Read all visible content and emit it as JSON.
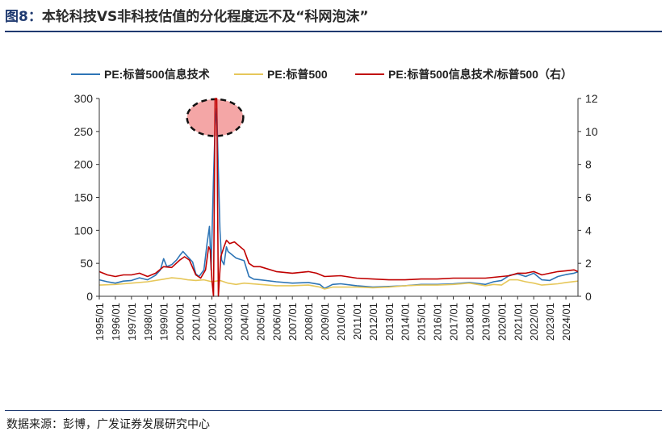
{
  "figure": {
    "number": "图8：",
    "title": "本轮科技VS非科技估值的分化程度远不及“科网泡沫”"
  },
  "source": "数据来源：彭博，广发证券发展研究中心",
  "chart_data": {
    "type": "line",
    "legend_position": "top",
    "grid": false,
    "x_tick_labels": [
      "1995/01",
      "1996/01",
      "1997/01",
      "1998/01",
      "1999/01",
      "2000/01",
      "2001/01",
      "2002/01",
      "2003/01",
      "2004/01",
      "2005/01",
      "2006/01",
      "2007/01",
      "2008/01",
      "2009/01",
      "2010/01",
      "2011/01",
      "2012/01",
      "2013/01",
      "2014/01",
      "2015/01",
      "2016/01",
      "2017/01",
      "2018/01",
      "2019/01",
      "2020/01",
      "2021/01",
      "2022/01",
      "2023/01",
      "2024/01"
    ],
    "x_range": [
      1995.0,
      2024.75
    ],
    "y_left": {
      "range": [
        0,
        300
      ],
      "ticks": [
        0,
        50,
        100,
        150,
        200,
        250,
        300
      ]
    },
    "y_right": {
      "range": [
        0,
        12
      ],
      "ticks": [
        0,
        2,
        4,
        6,
        8,
        10,
        12
      ]
    },
    "highlight": {
      "type": "dashed-ellipse",
      "center_x": 2002.2,
      "center_y_left": 271,
      "rx_years": 1.75,
      "ry_left": 28,
      "fill": "#f4a6a6"
    },
    "series": [
      {
        "name": "PE:标普500信息技术",
        "axis": "left",
        "color": "#2e75b6",
        "points": [
          [
            1995.0,
            25
          ],
          [
            1995.5,
            22
          ],
          [
            1996.0,
            20
          ],
          [
            1996.5,
            23
          ],
          [
            1997.0,
            24
          ],
          [
            1997.5,
            28
          ],
          [
            1998.0,
            25
          ],
          [
            1998.5,
            32
          ],
          [
            1998.8,
            40
          ],
          [
            1999.0,
            57
          ],
          [
            1999.2,
            45
          ],
          [
            1999.5,
            48
          ],
          [
            1999.8,
            55
          ],
          [
            2000.0,
            62
          ],
          [
            2000.2,
            68
          ],
          [
            2000.5,
            60
          ],
          [
            2000.8,
            52
          ],
          [
            2001.0,
            34
          ],
          [
            2001.2,
            30
          ],
          [
            2001.5,
            40
          ],
          [
            2001.7,
            80
          ],
          [
            2001.85,
            106
          ],
          [
            2001.95,
            40
          ],
          [
            2002.1,
            180
          ],
          [
            2002.2,
            258
          ],
          [
            2002.3,
            285
          ],
          [
            2002.4,
            190
          ],
          [
            2002.5,
            100
          ],
          [
            2002.6,
            55
          ],
          [
            2002.75,
            48
          ],
          [
            2002.9,
            75
          ],
          [
            2003.0,
            68
          ],
          [
            2003.5,
            58
          ],
          [
            2004.0,
            54
          ],
          [
            2004.3,
            30
          ],
          [
            2004.6,
            26
          ],
          [
            2005.0,
            25
          ],
          [
            2006.0,
            22
          ],
          [
            2007.0,
            20
          ],
          [
            2008.0,
            21
          ],
          [
            2008.7,
            18
          ],
          [
            2009.0,
            12
          ],
          [
            2009.5,
            18
          ],
          [
            2010.0,
            19
          ],
          [
            2011.0,
            16
          ],
          [
            2012.0,
            14
          ],
          [
            2013.0,
            15
          ],
          [
            2014.0,
            16
          ],
          [
            2015.0,
            18
          ],
          [
            2016.0,
            18
          ],
          [
            2017.0,
            19
          ],
          [
            2018.0,
            21
          ],
          [
            2019.0,
            18
          ],
          [
            2019.5,
            22
          ],
          [
            2020.0,
            24
          ],
          [
            2020.5,
            32
          ],
          [
            2021.0,
            34
          ],
          [
            2021.5,
            30
          ],
          [
            2022.0,
            35
          ],
          [
            2022.5,
            25
          ],
          [
            2023.0,
            24
          ],
          [
            2023.5,
            30
          ],
          [
            2024.0,
            33
          ],
          [
            2024.5,
            35
          ],
          [
            2024.75,
            37
          ]
        ]
      },
      {
        "name": "PE:标普500",
        "axis": "left",
        "color": "#e6c75a",
        "points": [
          [
            1995.0,
            17
          ],
          [
            1996.0,
            18
          ],
          [
            1997.0,
            20
          ],
          [
            1998.0,
            22
          ],
          [
            1999.0,
            26
          ],
          [
            1999.5,
            28
          ],
          [
            2000.0,
            27
          ],
          [
            2000.5,
            25
          ],
          [
            2001.0,
            24
          ],
          [
            2001.5,
            25
          ],
          [
            2002.0,
            22
          ],
          [
            2002.5,
            24
          ],
          [
            2003.0,
            20
          ],
          [
            2003.5,
            18
          ],
          [
            2004.0,
            20
          ],
          [
            2005.0,
            18
          ],
          [
            2006.0,
            16
          ],
          [
            2007.0,
            16
          ],
          [
            2008.0,
            17
          ],
          [
            2008.7,
            14
          ],
          [
            2009.0,
            11
          ],
          [
            2009.5,
            14
          ],
          [
            2010.0,
            14
          ],
          [
            2011.0,
            14
          ],
          [
            2012.0,
            13
          ],
          [
            2013.0,
            14
          ],
          [
            2014.0,
            16
          ],
          [
            2015.0,
            17
          ],
          [
            2016.0,
            17
          ],
          [
            2017.0,
            18
          ],
          [
            2018.0,
            20
          ],
          [
            2019.0,
            16
          ],
          [
            2019.5,
            18
          ],
          [
            2020.0,
            17
          ],
          [
            2020.5,
            25
          ],
          [
            2021.0,
            25
          ],
          [
            2021.5,
            22
          ],
          [
            2022.0,
            20
          ],
          [
            2022.5,
            17
          ],
          [
            2023.0,
            18
          ],
          [
            2023.5,
            19
          ],
          [
            2024.0,
            21
          ],
          [
            2024.75,
            23
          ]
        ]
      },
      {
        "name": "PE:标普500信息技术/标普500（右）",
        "axis": "right",
        "color": "#c00000",
        "points": [
          [
            1995.0,
            1.5
          ],
          [
            1995.5,
            1.3
          ],
          [
            1996.0,
            1.2
          ],
          [
            1996.5,
            1.3
          ],
          [
            1997.0,
            1.3
          ],
          [
            1997.5,
            1.4
          ],
          [
            1998.0,
            1.2
          ],
          [
            1998.5,
            1.4
          ],
          [
            1999.0,
            1.8
          ],
          [
            1999.5,
            1.75
          ],
          [
            2000.0,
            2.2
          ],
          [
            2000.3,
            2.4
          ],
          [
            2000.6,
            2.2
          ],
          [
            2001.0,
            1.3
          ],
          [
            2001.3,
            1.1
          ],
          [
            2001.6,
            1.6
          ],
          [
            2001.8,
            3.0
          ],
          [
            2001.9,
            2.8
          ],
          [
            2002.0,
            1.0
          ],
          [
            2002.1,
            0.0
          ],
          [
            2002.2,
            12.0
          ],
          [
            2002.3,
            12.0
          ],
          [
            2002.4,
            0.0
          ],
          [
            2002.55,
            2.4
          ],
          [
            2002.75,
            3.0
          ],
          [
            2002.9,
            3.4
          ],
          [
            2003.1,
            3.2
          ],
          [
            2003.4,
            3.3
          ],
          [
            2004.0,
            2.8
          ],
          [
            2004.3,
            2.0
          ],
          [
            2004.6,
            1.8
          ],
          [
            2005.0,
            1.8
          ],
          [
            2006.0,
            1.5
          ],
          [
            2007.0,
            1.4
          ],
          [
            2008.0,
            1.5
          ],
          [
            2008.5,
            1.4
          ],
          [
            2009.0,
            1.2
          ],
          [
            2010.0,
            1.25
          ],
          [
            2011.0,
            1.1
          ],
          [
            2012.0,
            1.05
          ],
          [
            2013.0,
            1.0
          ],
          [
            2014.0,
            1.0
          ],
          [
            2015.0,
            1.05
          ],
          [
            2016.0,
            1.05
          ],
          [
            2017.0,
            1.1
          ],
          [
            2018.0,
            1.1
          ],
          [
            2019.0,
            1.1
          ],
          [
            2020.0,
            1.2
          ],
          [
            2020.5,
            1.25
          ],
          [
            2021.0,
            1.4
          ],
          [
            2021.5,
            1.4
          ],
          [
            2022.0,
            1.5
          ],
          [
            2022.5,
            1.3
          ],
          [
            2023.0,
            1.4
          ],
          [
            2023.5,
            1.5
          ],
          [
            2024.0,
            1.55
          ],
          [
            2024.5,
            1.6
          ],
          [
            2024.75,
            1.5
          ]
        ]
      }
    ]
  }
}
